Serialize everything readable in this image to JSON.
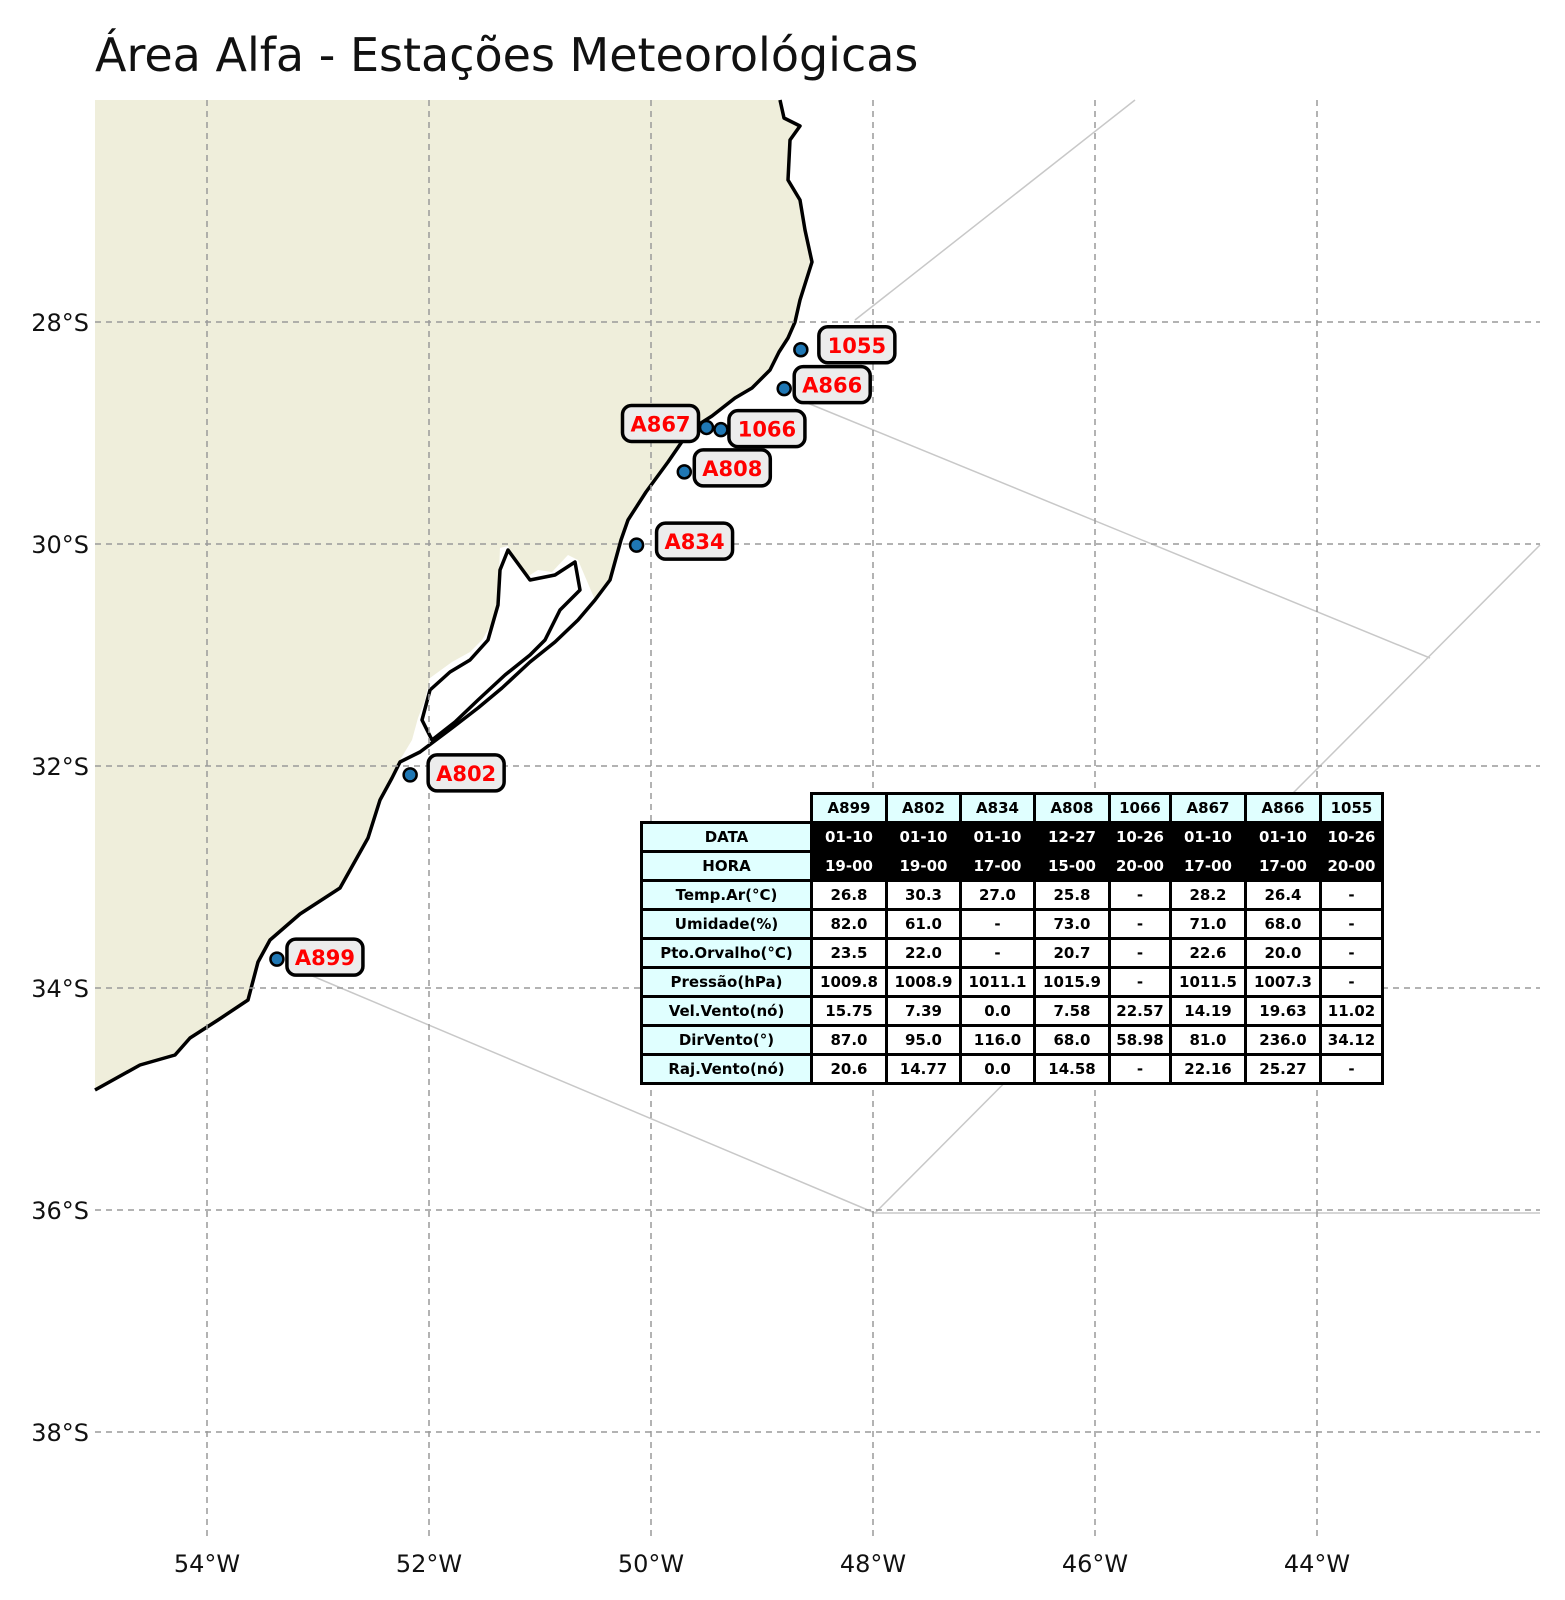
{
  "title": "Área Alfa - Estações Meteorológicas",
  "map": {
    "lon_ticks": [
      "54°W",
      "52°W",
      "50°W",
      "48°W",
      "46°W",
      "44°W"
    ],
    "lat_ticks": [
      "28°S",
      "30°S",
      "32°S",
      "34°S",
      "36°S",
      "38°S"
    ],
    "land_color": "#efeedb",
    "station_marker_color": "#1f77b4",
    "station_label_color": "#ff0000",
    "stations": [
      {
        "id": "1055",
        "lon": -48.65,
        "lat": -28.25
      },
      {
        "id": "A866",
        "lon": -48.8,
        "lat": -28.6
      },
      {
        "id": "A867",
        "lon": -49.5,
        "lat": -28.95
      },
      {
        "id": "1066",
        "lon": -49.37,
        "lat": -28.97
      },
      {
        "id": "A808",
        "lon": -49.7,
        "lat": -29.35
      },
      {
        "id": "A834",
        "lon": -50.13,
        "lat": -30.01
      },
      {
        "id": "A802",
        "lon": -52.17,
        "lat": -32.08
      },
      {
        "id": "A899",
        "lon": -53.37,
        "lat": -33.74
      }
    ]
  },
  "table": {
    "columns": [
      "A899",
      "A802",
      "A834",
      "A808",
      "1066",
      "A867",
      "A866",
      "1055"
    ],
    "rows": [
      {
        "label": "DATA",
        "values": [
          "01-10",
          "01-10",
          "01-10",
          "12-27",
          "10-26",
          "01-10",
          "01-10",
          "10-26"
        ]
      },
      {
        "label": "HORA",
        "values": [
          "19-00",
          "19-00",
          "17-00",
          "15-00",
          "20-00",
          "17-00",
          "17-00",
          "20-00"
        ]
      },
      {
        "label": "Temp.Ar(°C)",
        "values": [
          "26.8",
          "30.3",
          "27.0",
          "25.8",
          "-",
          "28.2",
          "26.4",
          "-"
        ]
      },
      {
        "label": "Umidade(%)",
        "values": [
          "82.0",
          "61.0",
          "-",
          "73.0",
          "-",
          "71.0",
          "68.0",
          "-"
        ]
      },
      {
        "label": "Pto.Orvalho(°C)",
        "values": [
          "23.5",
          "22.0",
          "-",
          "20.7",
          "-",
          "22.6",
          "20.0",
          "-"
        ]
      },
      {
        "label": "Pressão(hPa)",
        "values": [
          "1009.8",
          "1008.9",
          "1011.1",
          "1015.9",
          "-",
          "1011.5",
          "1007.3",
          "-"
        ]
      },
      {
        "label": "Vel.Vento(nó)",
        "values": [
          "15.75",
          "7.39",
          "0.0",
          "7.58",
          "22.57",
          "14.19",
          "19.63",
          "11.02"
        ]
      },
      {
        "label": "DirVento(°)",
        "values": [
          "87.0",
          "95.0",
          "116.0",
          "68.0",
          "58.98",
          "81.0",
          "236.0",
          "34.12"
        ]
      },
      {
        "label": "Raj.Vento(nó)",
        "values": [
          "20.6",
          "14.77",
          "0.0",
          "14.58",
          "-",
          "22.16",
          "25.27",
          "-"
        ]
      }
    ]
  }
}
